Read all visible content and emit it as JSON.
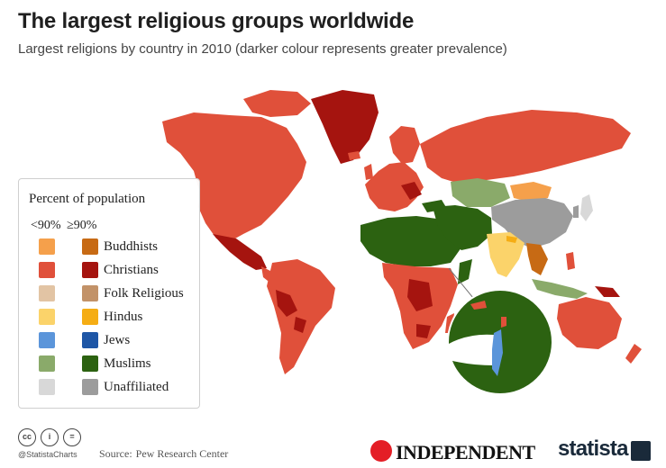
{
  "header": {
    "title": "The largest religious groups worldwide",
    "subtitle": "Largest religions by country in 2010 (darker colour represents greater prevalence)"
  },
  "legend": {
    "title": "Percent of population",
    "col_low": "<90%",
    "col_high": "≥90%",
    "items": [
      {
        "label": "Buddhists",
        "low": "#f5a04b",
        "high": "#c76a14"
      },
      {
        "label": "Christians",
        "low": "#e0503a",
        "high": "#a5140f"
      },
      {
        "label": "Folk Religious",
        "low": "#e2c4a4",
        "high": "#c29268"
      },
      {
        "label": "Hindus",
        "low": "#fbd36a",
        "high": "#f5ad14"
      },
      {
        "label": "Jews",
        "low": "#5b95da",
        "high": "#1e56a6"
      },
      {
        "label": "Muslims",
        "low": "#8aaa6a",
        "high": "#2c6211"
      },
      {
        "label": "Unaffiliated",
        "low": "#d8d8d8",
        "high": "#9c9c9c"
      }
    ]
  },
  "footer": {
    "handle": "@StatistaCharts",
    "source_label": "Source:",
    "source": "Pew Research Center",
    "cc_icons": [
      "creative-commons-icon",
      "attribution-icon",
      "no-derivatives-icon"
    ],
    "partner": "INDEPENDENT",
    "brand": "statista"
  }
}
